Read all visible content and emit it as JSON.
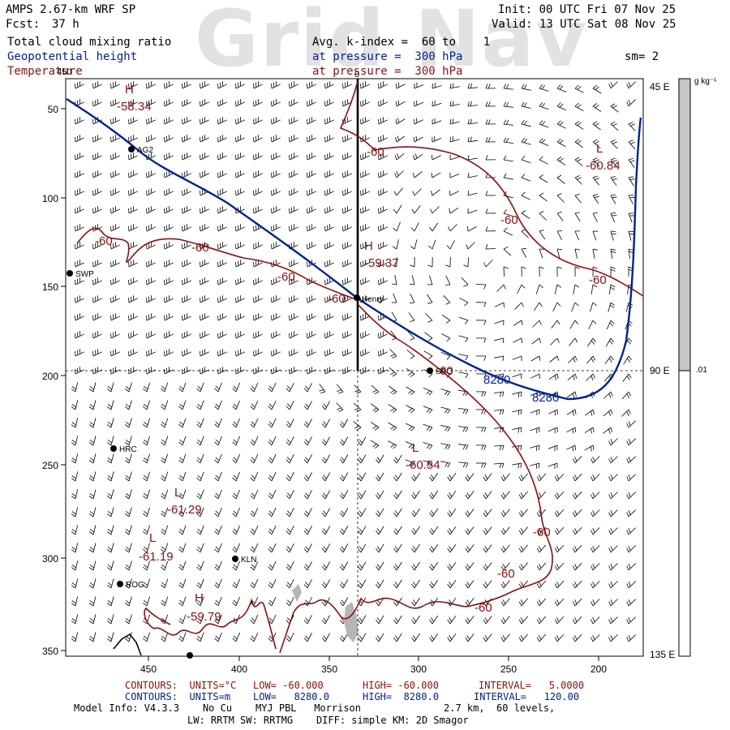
{
  "watermark": "Grid Nav",
  "header": {
    "model": "AMPS 2.67-km WRF SP",
    "fcst_label": "Fcst:",
    "fcst_value": "37 h",
    "init": "Init: 00 UTC Fri 07 Nov 25",
    "valid": "Valid: 13 UTC Sat 08 Nov 25",
    "field1": "Total cloud mixing ratio",
    "field2": "Geopotential height",
    "field3": "Temperature",
    "avg": "Avg. k-index =  60 to    1",
    "pressure1": "at pressure =  300 hPa",
    "pressure2": "at pressure =  300 hPa",
    "smoothing": "sm= 2"
  },
  "colors": {
    "height": "#00238f",
    "temperature": "#8b1010",
    "colorbar_fill": "#c6c6c6"
  },
  "axes": {
    "x_ticks": [
      "450",
      "400",
      "350",
      "300",
      "250",
      "200"
    ],
    "y_ticks": [
      "50",
      "100",
      "150",
      "200",
      "250",
      "300",
      "350"
    ],
    "top_tick": "0",
    "left_tick": "450",
    "right_labels": [
      "45 E",
      "90 E",
      "135 E"
    ]
  },
  "colorbar": {
    "unit": "g kg⁻¹",
    "value": ".01"
  },
  "stations": [
    {
      "id": "AG2"
    },
    {
      "id": "SWP"
    },
    {
      "id": "Henry"
    },
    {
      "id": "SPO"
    },
    {
      "id": "HRC"
    },
    {
      "id": "KLN"
    },
    {
      "id": "ROG"
    }
  ],
  "contour_labels": {
    "temperature": [
      "-60",
      "-60",
      "-60",
      "-60",
      "-60",
      "-60",
      "-60",
      "-60",
      "-60",
      "-60",
      "-60"
    ],
    "height": [
      "8280",
      "8280"
    ]
  },
  "extrema": [
    {
      "type": "H",
      "value": "-58.34"
    },
    {
      "type": "L",
      "value": "-60.84"
    },
    {
      "type": "H",
      "value": "-59.37"
    },
    {
      "type": "L",
      "value": "-60.54"
    },
    {
      "type": "L",
      "value": "-61.29"
    },
    {
      "type": "L",
      "value": "-61.19"
    },
    {
      "type": "H",
      "value": "-59.79"
    }
  ],
  "footer": {
    "red_line": {
      "contours": "CONTOURS:  UNITS=°C",
      "low": "LOW= -60.000",
      "high": "HIGH= -60.000",
      "interval": "INTERVAL=   5.0000"
    },
    "blue_line": {
      "contours": "CONTOURS:  UNITS=m",
      "low": "LOW=   8280.0",
      "high": "HIGH=  8280.0",
      "interval": "INTERVAL=   120.00"
    },
    "model_info": "Model Info: V4.3.3    No Cu    MYJ PBL   Morrison",
    "grid_info": "2.7 km,  60 levels,",
    "physics_info": "LW: RRTM SW: RRTMG    DIFF: simple KM: 2D Smagor"
  }
}
